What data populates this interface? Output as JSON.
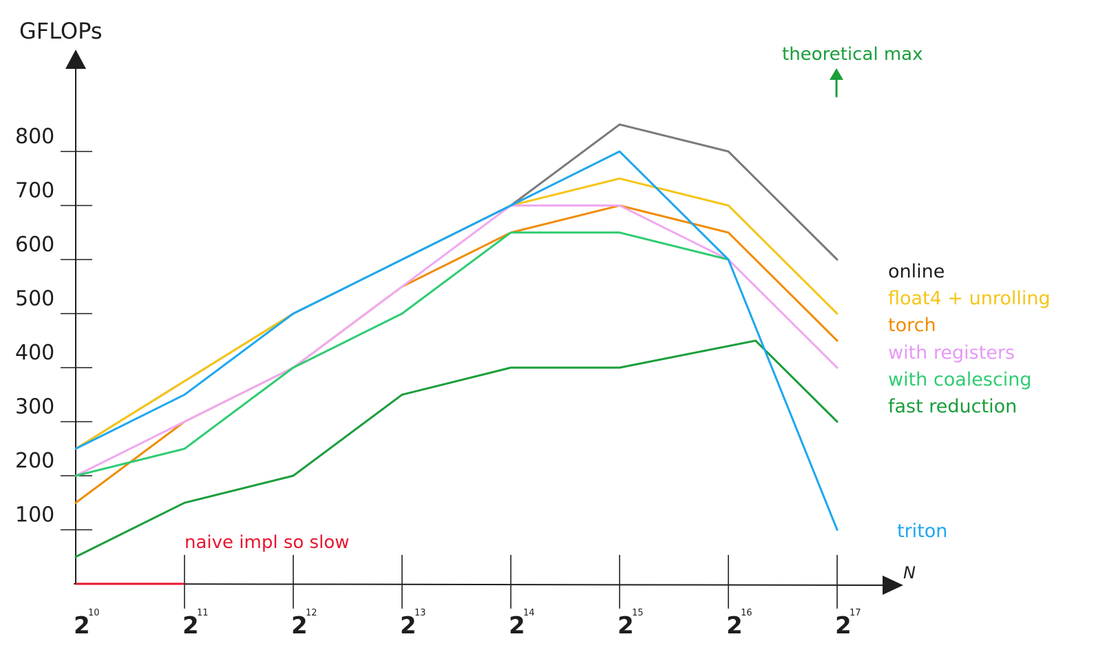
{
  "chart_data": {
    "type": "line",
    "ylabel": "GFLOPs",
    "xlabel": "N",
    "y_ticks": [
      "100",
      "200",
      "300",
      "400",
      "500",
      "600",
      "700",
      "800"
    ],
    "ylim": [
      0,
      1000
    ],
    "x_ticks": [
      {
        "base": "2",
        "exp": "10"
      },
      {
        "base": "2",
        "exp": "11"
      },
      {
        "base": "2",
        "exp": "12"
      },
      {
        "base": "2",
        "exp": "13"
      },
      {
        "base": "2",
        "exp": "14"
      },
      {
        "base": "2",
        "exp": "15"
      },
      {
        "base": "2",
        "exp": "16"
      },
      {
        "base": "2",
        "exp": "17"
      }
    ],
    "xlim": [
      10,
      17
    ],
    "series": [
      {
        "name": "online",
        "color": "#7a7a7a",
        "label_color": "#1e1e1e",
        "x": [
          10,
          11,
          12,
          13,
          14,
          15,
          16,
          17
        ],
        "y": [
          250,
          375,
          500,
          600,
          700,
          850,
          800,
          600
        ]
      },
      {
        "name": "float4 + unrolling",
        "color": "#f5c518",
        "label_color": "#f5c518",
        "x": [
          10,
          11,
          12,
          13,
          14,
          15,
          16,
          17
        ],
        "y": [
          250,
          375,
          500,
          600,
          700,
          750,
          700,
          500
        ]
      },
      {
        "name": "torch",
        "color": "#f08c00",
        "label_color": "#f08c00",
        "x": [
          10,
          11,
          12,
          13,
          14,
          15,
          16,
          17
        ],
        "y": [
          150,
          300,
          400,
          550,
          650,
          700,
          650,
          450
        ]
      },
      {
        "name": "with registers",
        "color": "#f0a8f0",
        "label_color": "#e599f7",
        "x": [
          10,
          11,
          12,
          13,
          14,
          15,
          16,
          17
        ],
        "y": [
          200,
          300,
          400,
          550,
          700,
          700,
          600,
          400
        ]
      },
      {
        "name": "with coalescing",
        "color": "#2ecc71",
        "label_color": "#2ecc71",
        "x": [
          10,
          11,
          12,
          13,
          14,
          15,
          16
        ],
        "y": [
          200,
          250,
          400,
          500,
          650,
          650,
          600
        ]
      },
      {
        "name": "fast reduction",
        "color": "#1a9e3a",
        "label_color": "#1a9e3a",
        "x": [
          10,
          11,
          12,
          13,
          14,
          15,
          16.25,
          17
        ],
        "y": [
          50,
          150,
          200,
          350,
          400,
          400,
          450,
          300
        ]
      },
      {
        "name": "triton",
        "color": "#1ea7f0",
        "label_color": "#1ea7f0",
        "x": [
          10,
          11,
          12,
          13,
          14,
          15,
          16,
          17
        ],
        "y": [
          250,
          350,
          500,
          600,
          700,
          800,
          600,
          100
        ]
      }
    ],
    "annotations": [
      {
        "text": "naive impl so slow",
        "color": "#e8152f",
        "x_range": [
          10,
          11
        ],
        "y": 0
      },
      {
        "text": "theoretical max",
        "color": "#1a9e3a",
        "arrow": "up"
      }
    ],
    "grid": false,
    "legend": "right"
  }
}
